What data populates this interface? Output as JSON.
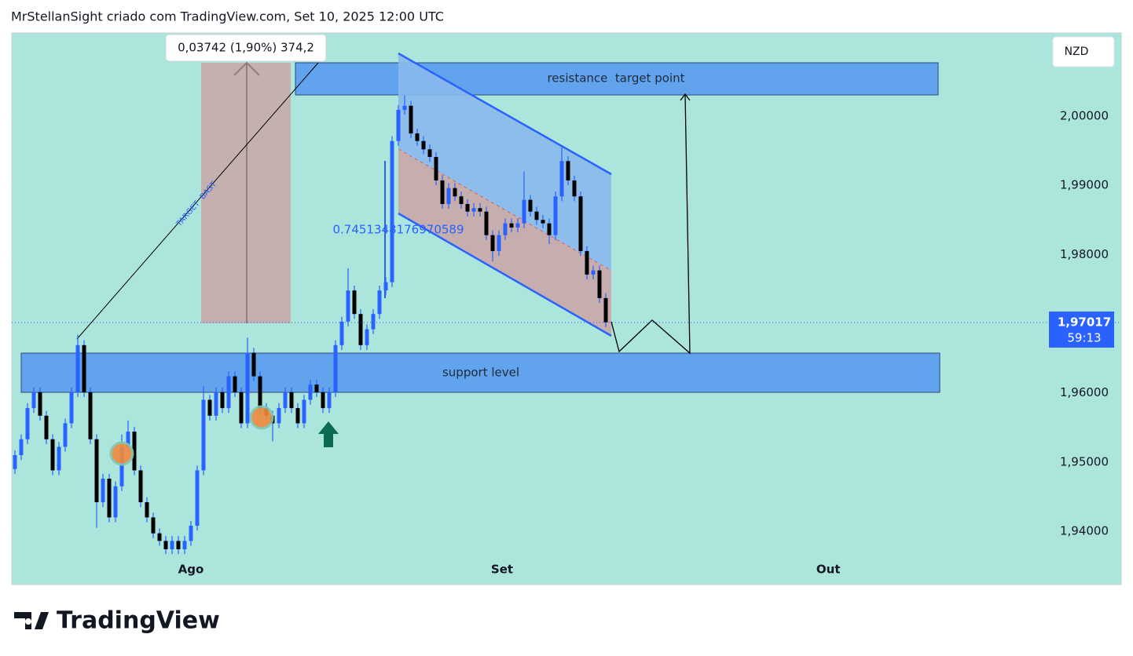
{
  "header": "MrStellanSight criado com TradingView.com, Set 10, 2025 12:00 UTC",
  "logo": "TradingView",
  "chart_data": {
    "type": "candlestick",
    "currency": "NZD",
    "up_color": "#2962ff",
    "down_color": "#000000",
    "ylim": [
      1.93229,
      2.01202
    ],
    "yticks": [
      {
        "value": 1.94,
        "label": "1,94000"
      },
      {
        "value": 1.95,
        "label": "1,95000"
      },
      {
        "value": 1.96,
        "label": "1,96000"
      },
      {
        "value": 1.97,
        "label": "1,97000"
      },
      {
        "value": 1.98,
        "label": "1,98000"
      },
      {
        "value": 1.99,
        "label": "1,99000"
      },
      {
        "value": 2.0,
        "label": "2,00000"
      }
    ],
    "xlim": [
      -0.5,
      176
    ],
    "xticks": [
      {
        "value": 28,
        "label": "Ago"
      },
      {
        "value": 77.5,
        "label": "Set"
      },
      {
        "value": 129.4,
        "label": "Out"
      }
    ],
    "last_price": {
      "value": 1.97017,
      "label": "1,97017"
    },
    "countdown": "59:13",
    "annotations": {
      "measure": "0,03742 (1,90%) 374,2",
      "resistance": "resistance  target point",
      "support": "support level",
      "target_line": "TARGET  BAST",
      "ratio": "0.7451348176970589"
    },
    "x": [
      0,
      1,
      2,
      3,
      4,
      5,
      6,
      7,
      8,
      9,
      10,
      11,
      12,
      13,
      14,
      15,
      16,
      17,
      18,
      19,
      20,
      21,
      22,
      23,
      24,
      25,
      26,
      27,
      28,
      29,
      30,
      31,
      32,
      33,
      34,
      35,
      36,
      37,
      38,
      39,
      40,
      41,
      42,
      43,
      44,
      45,
      46,
      47,
      48,
      49,
      50,
      51,
      52,
      53,
      54,
      55,
      56,
      57,
      58,
      59,
      60,
      61,
      62,
      63,
      64,
      65,
      66,
      67,
      68,
      69,
      70,
      71,
      72,
      73,
      74,
      75,
      76,
      77,
      78,
      79,
      80,
      81,
      82,
      83,
      84,
      85,
      86,
      87,
      88,
      89,
      90,
      91,
      92,
      93,
      94
    ],
    "open": [
      1.949,
      1.951,
      1.9533,
      1.9578,
      1.9601,
      1.9567,
      1.9533,
      1.9488,
      1.9522,
      1.9556,
      1.9601,
      1.9669,
      1.9601,
      1.9533,
      1.9442,
      1.9476,
      1.942,
      1.9465,
      1.9522,
      1.9544,
      1.9488,
      1.9442,
      1.942,
      1.9397,
      1.9386,
      1.9374,
      1.9386,
      1.9374,
      1.9386,
      1.9408,
      1.9488,
      1.959,
      1.9567,
      1.9601,
      1.9578,
      1.9624,
      1.9601,
      1.9556,
      1.9658,
      1.9624,
      1.9578,
      1.9567,
      1.9556,
      1.9578,
      1.9601,
      1.9578,
      1.9556,
      1.959,
      1.9612,
      1.9601,
      1.9578,
      1.9601,
      1.9669,
      1.9703,
      1.9748,
      1.9714,
      1.9669,
      1.9692,
      1.9714,
      1.9748,
      1.976,
      1.9964,
      2.0009,
      2.0015,
      1.9975,
      1.9964,
      1.9952,
      1.9941,
      1.9907,
      1.9873,
      1.9896,
      1.9884,
      1.9873,
      1.9862,
      1.9867,
      1.9862,
      1.9828,
      1.9805,
      1.9828,
      1.9845,
      1.9839,
      1.9845,
      1.9879,
      1.9862,
      1.985,
      1.9845,
      1.9828,
      1.9884,
      1.9935,
      1.9907,
      1.9884,
      1.9805,
      1.9771,
      1.9777,
      1.9737
    ],
    "high": [
      1.9517,
      1.954,
      1.9585,
      1.9608,
      1.9608,
      1.9574,
      1.954,
      1.9529,
      1.9563,
      1.9608,
      1.9684,
      1.9676,
      1.9608,
      1.954,
      1.9483,
      1.9483,
      1.9472,
      1.954,
      1.956,
      1.9551,
      1.9495,
      1.9449,
      1.9427,
      1.9404,
      1.9393,
      1.9393,
      1.9393,
      1.9393,
      1.9415,
      1.9495,
      1.961,
      1.9597,
      1.9608,
      1.9608,
      1.9631,
      1.9631,
      1.9608,
      1.968,
      1.9665,
      1.9631,
      1.9585,
      1.9574,
      1.9585,
      1.9608,
      1.9608,
      1.9585,
      1.9597,
      1.9619,
      1.9619,
      1.9608,
      1.9608,
      1.9676,
      1.971,
      1.978,
      1.9755,
      1.9721,
      1.9699,
      1.9721,
      1.9755,
      1.9767,
      1.9971,
      2.0016,
      2.003,
      2.0022,
      1.9982,
      1.9971,
      1.9959,
      1.9948,
      1.9914,
      1.9903,
      1.9903,
      1.9891,
      1.988,
      1.9874,
      1.9874,
      1.9869,
      1.9835,
      1.9835,
      1.9852,
      1.9852,
      1.9852,
      1.992,
      1.9886,
      1.9869,
      1.9857,
      1.9852,
      1.9891,
      1.9956,
      1.9942,
      1.9914,
      1.9891,
      1.9812,
      1.9784,
      1.9784,
      1.9744
    ],
    "low": [
      1.9483,
      1.9503,
      1.9526,
      1.9571,
      1.956,
      1.9526,
      1.9481,
      1.9481,
      1.9515,
      1.9549,
      1.9594,
      1.9594,
      1.9526,
      1.9405,
      1.9435,
      1.9413,
      1.9413,
      1.9458,
      1.9515,
      1.9481,
      1.9435,
      1.9413,
      1.939,
      1.9379,
      1.9367,
      1.9367,
      1.9367,
      1.9367,
      1.9379,
      1.9401,
      1.9481,
      1.956,
      1.956,
      1.9571,
      1.9571,
      1.9594,
      1.9549,
      1.9549,
      1.9617,
      1.9571,
      1.956,
      1.953,
      1.9549,
      1.9571,
      1.9571,
      1.9549,
      1.9549,
      1.9583,
      1.9594,
      1.9571,
      1.9571,
      1.9594,
      1.9662,
      1.9696,
      1.9707,
      1.9662,
      1.9662,
      1.9685,
      1.9707,
      1.9741,
      1.9753,
      1.9957,
      2.0002,
      1.9968,
      1.9957,
      1.9945,
      1.9934,
      1.99,
      1.9866,
      1.9866,
      1.9877,
      1.9866,
      1.9855,
      1.9855,
      1.9855,
      1.9821,
      1.979,
      1.9798,
      1.9821,
      1.9832,
      1.9832,
      1.9838,
      1.9855,
      1.9843,
      1.9838,
      1.9815,
      1.9821,
      1.9877,
      1.99,
      1.9877,
      1.9798,
      1.9764,
      1.9764,
      1.973,
      1.9695
    ],
    "close": [
      1.951,
      1.9533,
      1.9578,
      1.9601,
      1.9567,
      1.9533,
      1.9488,
      1.9522,
      1.9556,
      1.9601,
      1.9669,
      1.9601,
      1.9533,
      1.9442,
      1.9476,
      1.942,
      1.9465,
      1.9522,
      1.9544,
      1.9488,
      1.9442,
      1.942,
      1.9397,
      1.9386,
      1.9374,
      1.9386,
      1.9374,
      1.9386,
      1.9408,
      1.9488,
      1.959,
      1.9567,
      1.9601,
      1.9578,
      1.9624,
      1.9601,
      1.9556,
      1.9658,
      1.9624,
      1.9578,
      1.9567,
      1.9556,
      1.9578,
      1.9601,
      1.9578,
      1.9556,
      1.959,
      1.9612,
      1.9601,
      1.9578,
      1.9601,
      1.9669,
      1.9703,
      1.9748,
      1.9714,
      1.9669,
      1.9692,
      1.9714,
      1.9748,
      1.976,
      1.9964,
      2.0009,
      2.0015,
      1.9975,
      1.9964,
      1.9952,
      1.9941,
      1.9907,
      1.9873,
      1.9896,
      1.9884,
      1.9873,
      1.9862,
      1.9867,
      1.9862,
      1.9828,
      1.9805,
      1.9828,
      1.9845,
      1.9839,
      1.9845,
      1.9879,
      1.9862,
      1.985,
      1.9845,
      1.9828,
      1.9884,
      1.9935,
      1.9907,
      1.9884,
      1.9805,
      1.9771,
      1.9777,
      1.9737,
      1.9702
    ]
  }
}
